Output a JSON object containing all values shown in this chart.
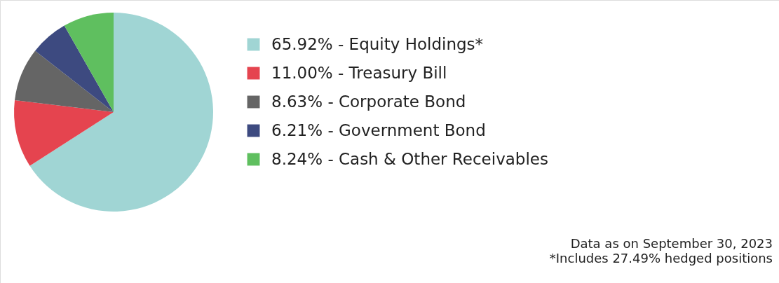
{
  "chart_data": {
    "type": "pie",
    "categories": [
      "65.92% - Equity Holdings*",
      "11.00% - Treasury Bill",
      "8.63%  - Corporate Bond",
      "6.21%  - Government Bond",
      "8.24% - Cash & Other Receivables"
    ],
    "values": [
      65.92,
      11.0,
      8.63,
      6.21,
      8.24
    ],
    "colors": [
      "#a0d5d4",
      "#e5444f",
      "#656565",
      "#3d4a80",
      "#5fbf5f"
    ],
    "legend": "right",
    "annotations": [
      "Data as on September 30, 2023",
      "*Includes 27.49% hedged positions"
    ]
  }
}
